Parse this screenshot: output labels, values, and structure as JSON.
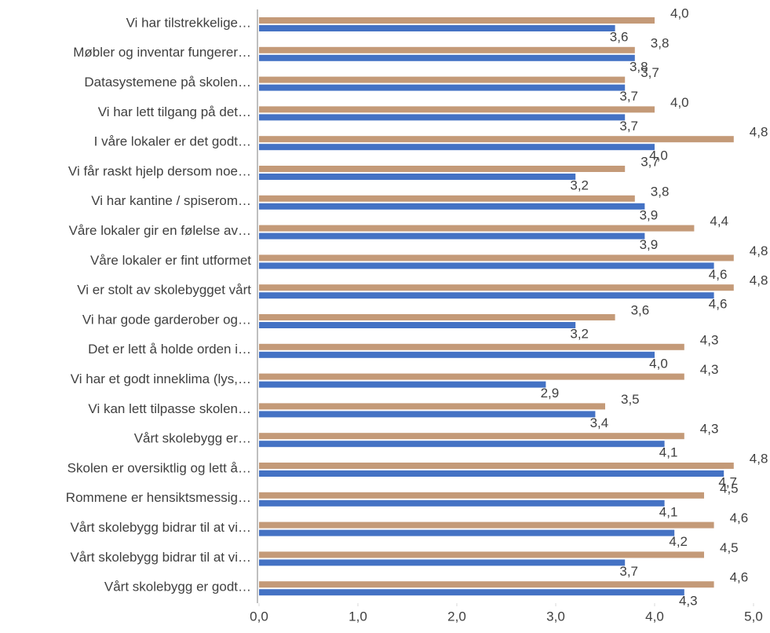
{
  "chart_data": {
    "type": "hbar",
    "categories": [
      "Vi har tilstrekkelige…",
      "Møbler og inventar fungerer…",
      "Datasystemene på skolen…",
      "Vi har lett tilgang på det…",
      "I våre lokaler er det godt…",
      "Vi får raskt hjelp dersom noe…",
      "Vi har kantine / spiserom…",
      "Våre lokaler gir en følelse av…",
      "Våre lokaler er fint utformet",
      "Vi er stolt av skolebygget vårt",
      "Vi har gode garderober og…",
      "Det er lett å holde orden i…",
      "Vi har et godt inneklima (lys,…",
      "Vi kan lett tilpasse skolen…",
      "Vårt skolebygg er…",
      "Skolen er oversiktlig og lett å…",
      "Rommene er hensiktsmessig…",
      "Vårt skolebygg bidrar til at vi…",
      "Vårt skolebygg bidrar til at vi…",
      "Vårt skolebygg er godt…"
    ],
    "series": [
      {
        "color": "#c49a78",
        "values": [
          4.0,
          3.8,
          3.7,
          4.0,
          4.8,
          3.7,
          3.8,
          4.4,
          4.8,
          4.8,
          3.6,
          4.3,
          4.3,
          3.5,
          4.3,
          4.8,
          4.5,
          4.6,
          4.5,
          4.6
        ],
        "value_labels": [
          "4,0",
          "3,8",
          "3,7",
          "4,0",
          "4,8",
          "3,7",
          "3,8",
          "4,4",
          "4,8",
          "4,8",
          "3,6",
          "4,3",
          "4,3",
          "3,5",
          "4,3",
          "4,8",
          "4,5",
          "4,6",
          "4,5",
          "4,6"
        ]
      },
      {
        "color": "#4472c4",
        "values": [
          3.6,
          3.8,
          3.7,
          3.7,
          4.0,
          3.2,
          3.9,
          3.9,
          4.6,
          4.6,
          3.2,
          4.0,
          2.9,
          3.4,
          4.1,
          4.7,
          4.1,
          4.2,
          3.7,
          4.3
        ],
        "value_labels": [
          "3,6",
          "3,8",
          "3,7",
          "3,7",
          "4,0",
          "3,2",
          "3,9",
          "3,9",
          "4,6",
          "4,6",
          "3,2",
          "4,0",
          "2,9",
          "3,4",
          "4,1",
          "4,7",
          "4,1",
          "4,2",
          "3,7",
          "4,3"
        ]
      }
    ],
    "xlim": [
      0,
      5
    ],
    "xticks": [
      {
        "value": 0,
        "label": "0,0"
      },
      {
        "value": 1,
        "label": "1,0"
      },
      {
        "value": 2,
        "label": "2,0"
      },
      {
        "value": 3,
        "label": "3,0"
      },
      {
        "value": 4,
        "label": "4,0"
      },
      {
        "value": 5,
        "label": "5,0"
      }
    ]
  }
}
